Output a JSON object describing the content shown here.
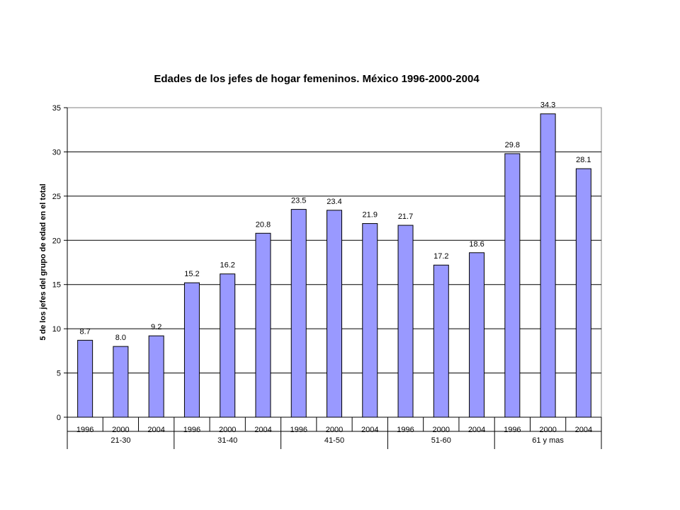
{
  "chart_data": {
    "type": "bar",
    "title": "Edades de los jefes de hogar femeninos. México 1996-2000-2004",
    "ylabel": "5 de los jefes del grupo de edad en el total",
    "xlabel": "",
    "ylim": [
      0,
      35
    ],
    "yticks": [
      0,
      5,
      10,
      15,
      20,
      25,
      30,
      35
    ],
    "grid": true,
    "legend": "none",
    "bar_color": "#9999FF",
    "groups": [
      {
        "label": "21-30",
        "categories": [
          "1996",
          "2000",
          "2004"
        ],
        "values": [
          8.7,
          8.0,
          9.2
        ],
        "value_labels": [
          "8.7",
          "8.0",
          "9.2"
        ]
      },
      {
        "label": "31-40",
        "categories": [
          "1996",
          "2000",
          "2004"
        ],
        "values": [
          15.2,
          16.2,
          20.8
        ],
        "value_labels": [
          "15.2",
          "16.2",
          "20.8"
        ]
      },
      {
        "label": "41-50",
        "categories": [
          "1996",
          "2000",
          "2004"
        ],
        "values": [
          23.5,
          23.4,
          21.9
        ],
        "value_labels": [
          "23.5",
          "23.4",
          "21.9"
        ]
      },
      {
        "label": "51-60",
        "categories": [
          "1996",
          "2000",
          "2004"
        ],
        "values": [
          21.7,
          17.2,
          18.6
        ],
        "value_labels": [
          "21.7",
          "17.2",
          "18.6"
        ]
      },
      {
        "label": "61 y mas",
        "categories": [
          "1996",
          "2000",
          "2004"
        ],
        "values": [
          29.8,
          34.3,
          28.1
        ],
        "value_labels": [
          "29.8",
          "34.3",
          "28.1"
        ]
      }
    ]
  }
}
